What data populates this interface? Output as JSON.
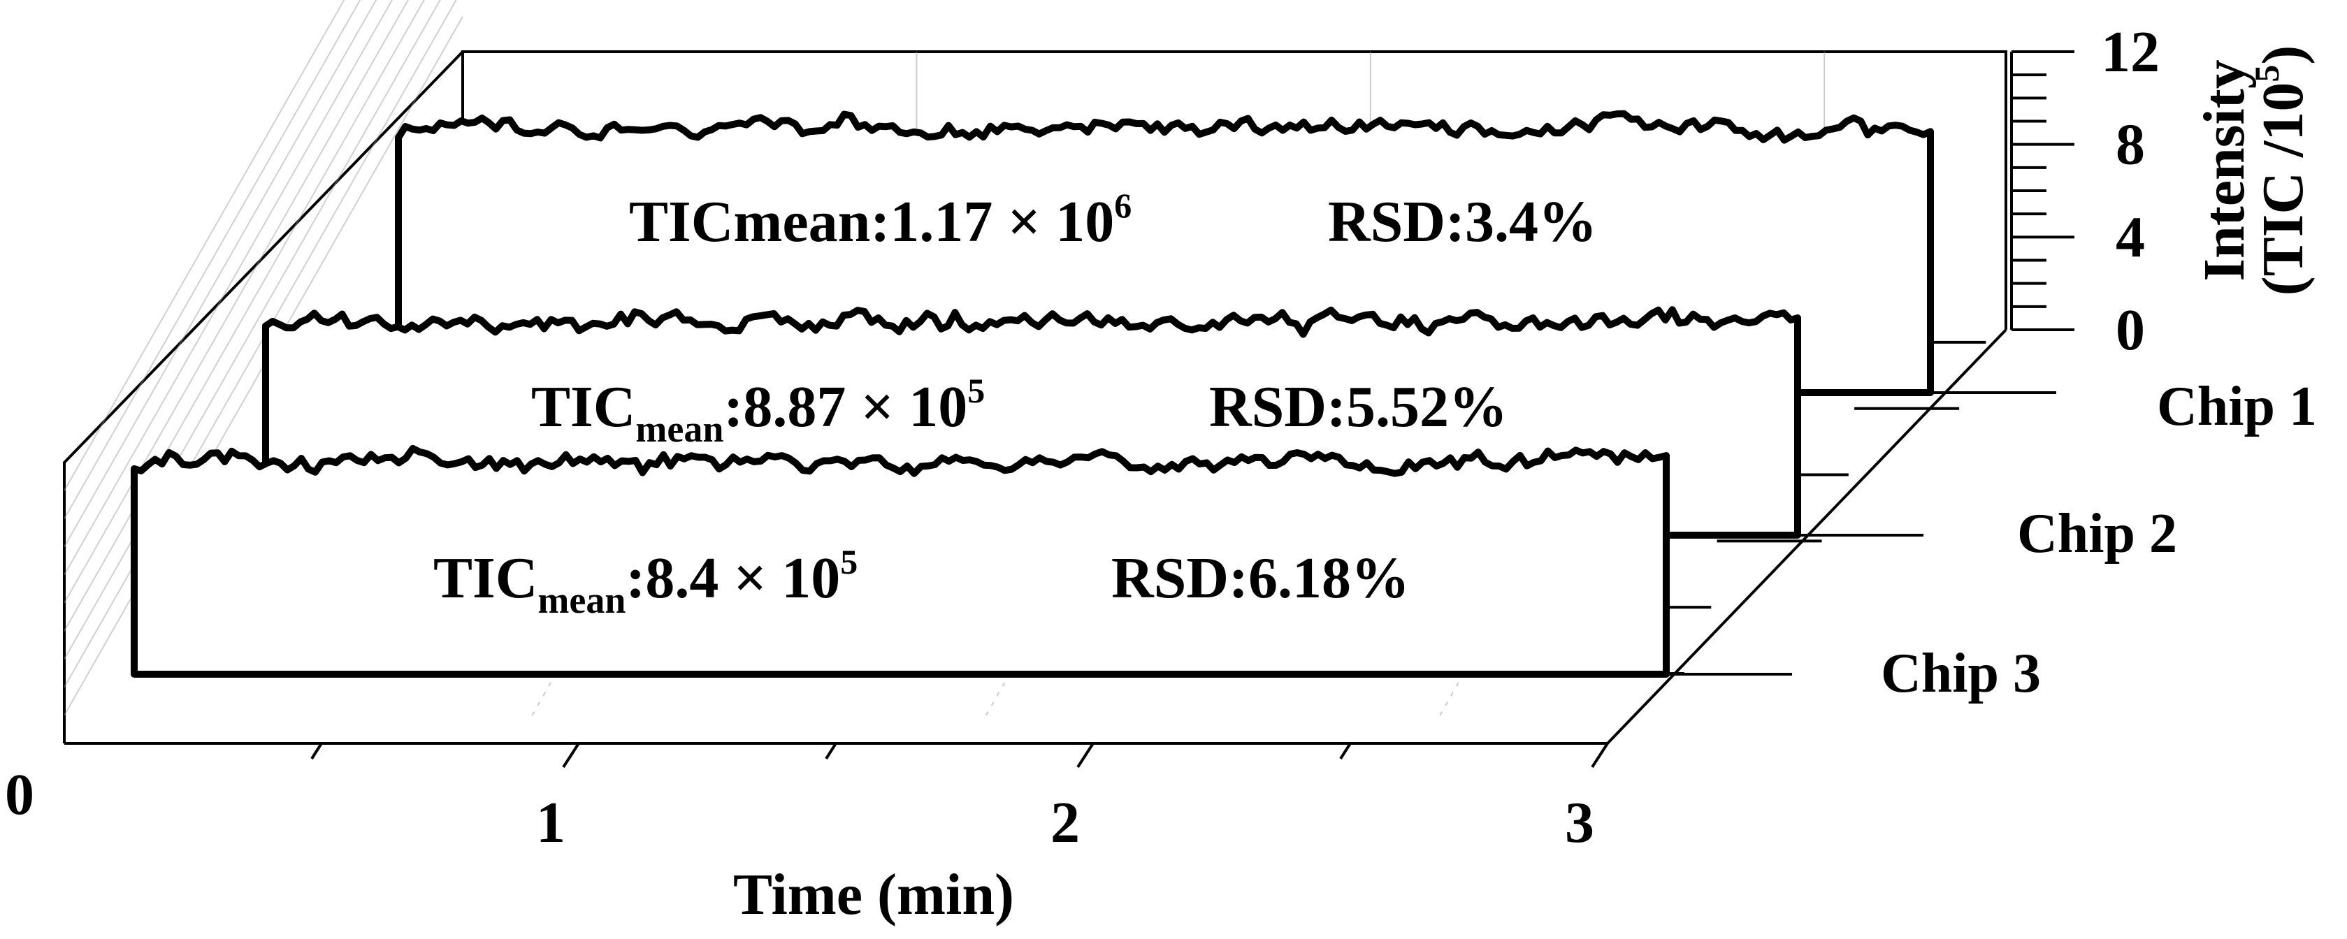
{
  "chart_data": {
    "type": "line",
    "projection": "3d-waterfall",
    "xlabel": "Time (min)",
    "x_ticks": [
      "0",
      "1",
      "2",
      "3"
    ],
    "xlim": [
      0,
      3
    ],
    "zlabel_line1": "Intensity",
    "zlabel_line2_base": "(TIC /10",
    "zlabel_line2_sup": "5",
    "zlabel_line2_tail": ")",
    "z_ticks": [
      "0",
      "4",
      "8",
      "12"
    ],
    "zlim": [
      0,
      12
    ],
    "z_unit_scale": 100000,
    "series": [
      {
        "name": "Chip 1",
        "mean_value": 11.7,
        "annotation": {
          "prefix": "TICmean:1.17 × 10",
          "sub": "",
          "mid": "",
          "exp": "6",
          "rsd": "RSD:3.4%"
        }
      },
      {
        "name": "Chip 2",
        "mean_value": 8.87,
        "annotation": {
          "prefix": "TIC",
          "sub": "mean",
          "mid": ":8.87 × 10",
          "exp": "5",
          "rsd": "RSD:5.52%"
        }
      },
      {
        "name": "Chip 3",
        "mean_value": 8.4,
        "annotation": {
          "prefix": "TIC",
          "sub": "mean",
          "mid": ":8.4 × 10",
          "exp": "5",
          "rsd": "RSD:6.18%"
        }
      }
    ]
  }
}
